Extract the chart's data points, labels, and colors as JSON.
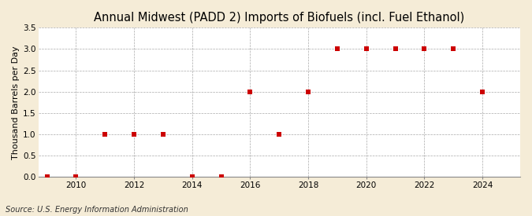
{
  "title": "Annual Midwest (PADD 2) Imports of Biofuels (incl. Fuel Ethanol)",
  "ylabel": "Thousand Barrels per Day",
  "source": "Source: U.S. Energy Information Administration",
  "fig_background_color": "#f5ecd7",
  "plot_background_color": "#ffffff",
  "years": [
    2009,
    2010,
    2011,
    2012,
    2013,
    2014,
    2015,
    2016,
    2017,
    2018,
    2019,
    2020,
    2021,
    2022,
    2023,
    2024
  ],
  "values": [
    0.0,
    0.0,
    1.0,
    1.0,
    1.0,
    0.0,
    0.0,
    2.0,
    1.0,
    2.0,
    3.0,
    3.0,
    3.0,
    3.0,
    3.0,
    2.0
  ],
  "marker_color": "#cc0000",
  "marker_size": 4,
  "ylim": [
    0,
    3.5
  ],
  "yticks": [
    0.0,
    0.5,
    1.0,
    1.5,
    2.0,
    2.5,
    3.0,
    3.5
  ],
  "xlim": [
    2008.7,
    2025.3
  ],
  "xticks": [
    2010,
    2012,
    2014,
    2016,
    2018,
    2020,
    2022,
    2024
  ],
  "grid_color": "#aaaaaa",
  "title_fontsize": 10.5,
  "ylabel_fontsize": 8,
  "tick_fontsize": 7.5,
  "source_fontsize": 7
}
